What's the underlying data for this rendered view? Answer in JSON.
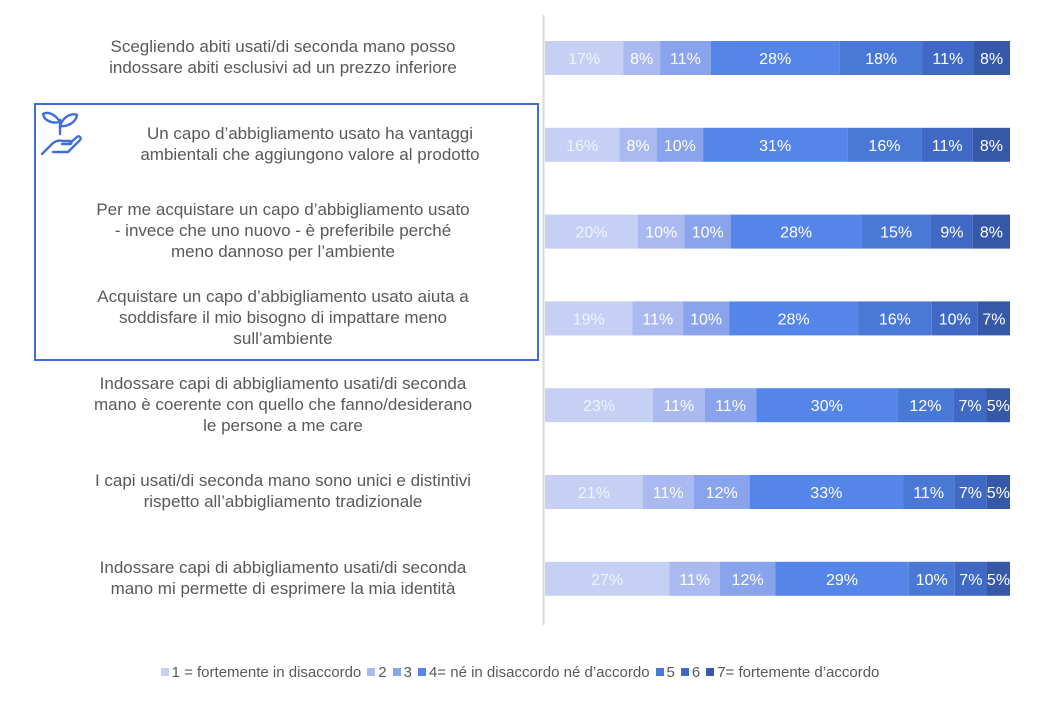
{
  "chart_data": {
    "type": "bar",
    "orientation": "horizontal",
    "stacked": true,
    "normalized": true,
    "title": "",
    "xlabel": "",
    "ylabel": "",
    "categories": [
      "Scegliendo abiti usati/di seconda mano posso indossare abiti esclusivi ad un prezzo inferiore",
      "Un capo d’abbigliamento usato ha vantaggi ambientali che aggiungono valore al prodotto",
      "Per me acquistare un capo d’abbigliamento usato - invece che uno nuovo - è preferibile perché meno dannoso per l’ambiente",
      "Acquistare un capo d’abbigliamento usato aiuta a soddisfare il mio bisogno di impattare meno sull’ambiente",
      "Indossare capi di abbigliamento usati/di seconda mano è coerente con quello che fanno/desiderano le persone a me care",
      "I capi usati/di seconda mano sono unici e distintivi rispetto all’abbigliamento tradizionale",
      "Indossare capi di abbigliamento usati/di seconda mano mi permette di esprimere la mia identità"
    ],
    "category_lines": [
      [
        "Scegliendo abiti usati/di seconda mano posso",
        "indossare abiti esclusivi ad un prezzo inferiore"
      ],
      [
        "Un capo d’abbigliamento usato ha vantaggi",
        "ambientali che aggiungono valore al prodotto"
      ],
      [
        "Per me acquistare un capo d’abbigliamento usato",
        "- invece che uno nuovo - è preferibile perché",
        "meno dannoso per l’ambiente"
      ],
      [
        "Acquistare un capo d’abbigliamento usato aiuta a",
        "soddisfare il mio bisogno di impattare meno",
        "sull’ambiente"
      ],
      [
        "Indossare capi di abbigliamento usati/di seconda",
        "mano è coerente con quello che fanno/desiderano",
        "le persone a me care"
      ],
      [
        "I capi usati/di seconda mano sono unici e distintivi",
        "rispetto all’abbigliamento tradizionale"
      ],
      [
        "Indossare capi di abbigliamento usati/di seconda",
        "mano mi permette di esprimere la mia identità"
      ]
    ],
    "series": [
      {
        "name": "1 = fortemente in disaccordo",
        "color": "#c5d0f4",
        "values": [
          17,
          16,
          20,
          19,
          23,
          21,
          27
        ]
      },
      {
        "name": "2",
        "color": "#aab9f0",
        "values": [
          8,
          8,
          10,
          11,
          11,
          11,
          11
        ]
      },
      {
        "name": "3",
        "color": "#8aa3ed",
        "values": [
          11,
          10,
          10,
          10,
          11,
          12,
          12
        ]
      },
      {
        "name": "4= né in disaccordo né d’accordo",
        "color": "#5585e8",
        "values": [
          28,
          31,
          28,
          28,
          30,
          33,
          29
        ]
      },
      {
        "name": "5",
        "color": "#4a78d6",
        "values": [
          18,
          16,
          15,
          16,
          12,
          11,
          10
        ]
      },
      {
        "name": "6",
        "color": "#3f69c4",
        "values": [
          11,
          11,
          9,
          10,
          7,
          7,
          7
        ]
      },
      {
        "name": "7= fortemente d’accordo",
        "color": "#3558a7",
        "values": [
          8,
          8,
          8,
          7,
          5,
          5,
          5
        ]
      }
    ],
    "value_suffix": "%",
    "legend_position": "bottom",
    "grid": false,
    "highlighted_categories": [
      1,
      2,
      3
    ],
    "highlight_icon": "plant-in-hand-icon"
  }
}
